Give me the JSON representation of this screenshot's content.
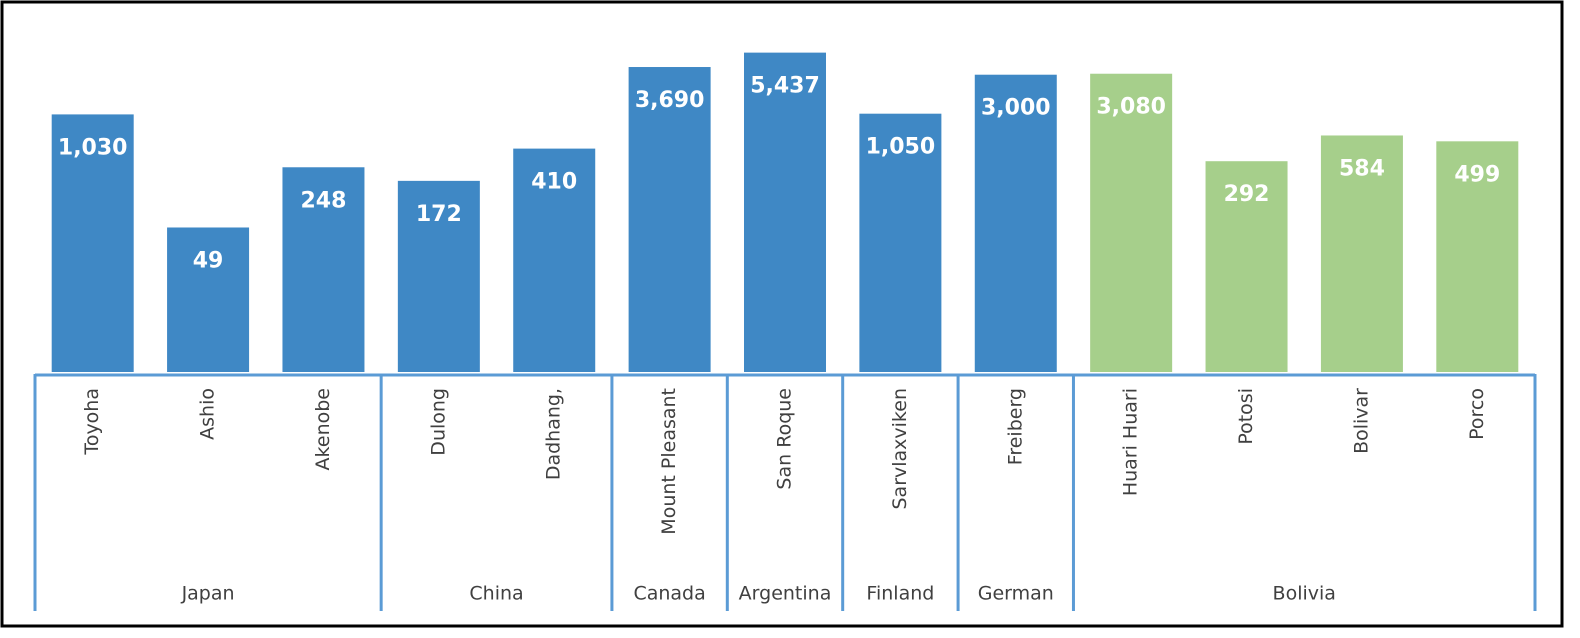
{
  "chart_data": {
    "type": "bar",
    "log_scale": true,
    "ylim": [
      1,
      10000
    ],
    "groups": [
      {
        "name": "Japan",
        "color": "#3f88c5",
        "categories": [
          "Toyoha",
          "Ashio",
          "Akenobe"
        ],
        "values": [
          1030,
          49,
          248
        ],
        "value_labels": [
          "1,030",
          "49",
          "248"
        ]
      },
      {
        "name": "China",
        "color": "#3f88c5",
        "categories": [
          "Dulong",
          "Dadhang,"
        ],
        "values": [
          172,
          410
        ],
        "value_labels": [
          "172",
          "410"
        ]
      },
      {
        "name": "Canada",
        "color": "#3f88c5",
        "categories": [
          "Mount Pleasant"
        ],
        "values": [
          3690
        ],
        "value_labels": [
          "3,690"
        ]
      },
      {
        "name": "Argentina",
        "color": "#3f88c5",
        "categories": [
          "San Roque"
        ],
        "values": [
          5437
        ],
        "value_labels": [
          "5,437"
        ]
      },
      {
        "name": "Finland",
        "color": "#3f88c5",
        "categories": [
          "Sarvlaxviken"
        ],
        "values": [
          1050
        ],
        "value_labels": [
          "1,050"
        ]
      },
      {
        "name": "German",
        "color": "#3f88c5",
        "categories": [
          "Freiberg"
        ],
        "values": [
          3000
        ],
        "value_labels": [
          "3,000"
        ]
      },
      {
        "name": "Bolivia",
        "color": "#a6cf8b",
        "categories": [
          "Huari Huari",
          "Potosi",
          "Bolivar",
          "Porco"
        ],
        "values": [
          3080,
          292,
          584,
          499
        ],
        "value_labels": [
          "3,080",
          "292",
          "584",
          "499"
        ]
      }
    ]
  }
}
